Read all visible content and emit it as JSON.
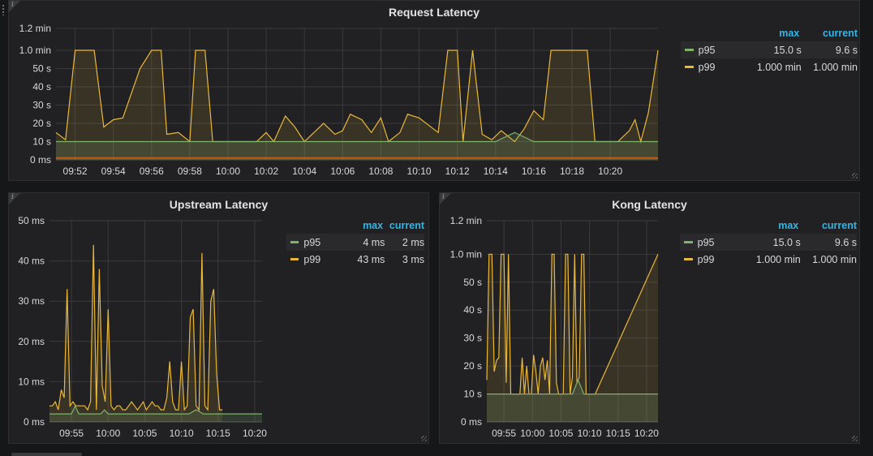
{
  "colors": {
    "p95": "#7eb26d",
    "p99": "#eab839",
    "max_header": "#33b5e5",
    "threshold": "#c15c17"
  },
  "legend_headers": {
    "max": "max",
    "current": "current"
  },
  "panels": [
    {
      "id": "request",
      "title": "Request Latency",
      "legend": [
        {
          "name": "p95",
          "max": "15.0 s",
          "current": "9.6 s"
        },
        {
          "name": "p99",
          "max": "1.000 min",
          "current": "1.000 min"
        }
      ]
    },
    {
      "id": "upstream",
      "title": "Upstream Latency",
      "legend": [
        {
          "name": "p95",
          "max": "4 ms",
          "current": "2 ms"
        },
        {
          "name": "p99",
          "max": "43 ms",
          "current": "3 ms"
        }
      ]
    },
    {
      "id": "kong",
      "title": "Kong Latency",
      "legend": [
        {
          "name": "p95",
          "max": "15.0 s",
          "current": "9.6 s"
        },
        {
          "name": "p99",
          "max": "1.000 min",
          "current": "1.000 min"
        }
      ]
    }
  ],
  "chart_data": [
    {
      "type": "line",
      "title": "Request Latency",
      "unit": "s",
      "ylim": [
        0,
        72
      ],
      "yticks": [
        0,
        10,
        20,
        30,
        40,
        50,
        60,
        72
      ],
      "ytick_labels": [
        "0 ms",
        "10 s",
        "20 s",
        "30 s",
        "40 s",
        "50 s",
        "1.0 min",
        "1.2 min"
      ],
      "x_start_min": 591,
      "x_end_min": 622.5,
      "xticks": [
        592,
        594,
        596,
        598,
        600,
        602,
        604,
        606,
        608,
        610,
        612,
        614,
        616,
        618,
        620
      ],
      "xtick_labels": [
        "09:52",
        "09:54",
        "09:56",
        "09:58",
        "10:00",
        "10:02",
        "10:04",
        "10:06",
        "10:08",
        "10:10",
        "10:12",
        "10:14",
        "10:16",
        "10:18",
        "10:20"
      ],
      "threshold": 1,
      "series": [
        {
          "name": "p99",
          "values": [
            15,
            11,
            60,
            60,
            18,
            22,
            23,
            50,
            60,
            60,
            14,
            15,
            10,
            60,
            60,
            10,
            10,
            10,
            10,
            10,
            15,
            10,
            24,
            18,
            10,
            15,
            20,
            14,
            16,
            25,
            22,
            15,
            23,
            10,
            15,
            25,
            23,
            19,
            15,
            60,
            60,
            10,
            60,
            14,
            11,
            16,
            10,
            17,
            27,
            22,
            60,
            60,
            60,
            60,
            10,
            10,
            10,
            16,
            22,
            10,
            26,
            60
          ],
          "x": [
            591,
            591.5,
            592,
            593,
            593.5,
            594,
            594.5,
            595.4,
            596,
            596.5,
            596.8,
            597.4,
            598,
            598.3,
            598.8,
            599.2,
            600,
            600.5,
            601,
            601.5,
            602,
            602.4,
            603,
            603.5,
            604,
            604.5,
            605,
            605.6,
            606,
            606.4,
            607,
            607.5,
            608,
            608.4,
            609,
            609.4,
            610,
            610.5,
            611,
            611.5,
            612,
            612.3,
            612.8,
            613.3,
            613.8,
            614.3,
            615,
            615.5,
            616,
            616.5,
            616.9,
            617,
            618,
            618.8,
            619.2,
            620,
            620.4,
            621,
            621.3,
            621.6,
            622,
            622.5
          ]
        },
        {
          "name": "p95",
          "values": [
            10,
            10,
            10,
            10,
            10,
            10,
            10,
            10,
            10,
            10,
            10,
            10,
            10,
            10,
            10,
            10,
            10,
            10,
            10,
            10,
            10,
            10,
            10,
            10,
            15,
            10,
            10,
            10,
            10,
            10,
            10,
            10,
            10
          ],
          "x": [
            591,
            592,
            593,
            594,
            595,
            596,
            597,
            598,
            599,
            600,
            601,
            602,
            603,
            604,
            605,
            606,
            607,
            608,
            609,
            610,
            611,
            612,
            613,
            614,
            615,
            616,
            617,
            618,
            619,
            620,
            621,
            622,
            622.5
          ]
        }
      ]
    },
    {
      "type": "line",
      "title": "Upstream Latency",
      "unit": "ms",
      "ylim": [
        0,
        50
      ],
      "yticks": [
        0,
        10,
        20,
        30,
        40,
        50
      ],
      "ytick_labels": [
        "0 ms",
        "10 ms",
        "20 ms",
        "30 ms",
        "40 ms",
        "50 ms"
      ],
      "x_start_min": 592,
      "x_end_min": 621,
      "xticks": [
        595,
        600,
        605,
        610,
        615,
        620
      ],
      "xtick_labels": [
        "09:55",
        "10:00",
        "10:05",
        "10:10",
        "10:15",
        "10:20"
      ],
      "series": [
        {
          "name": "p99",
          "values": [
            4,
            4,
            5,
            3,
            8,
            6,
            33,
            4,
            5,
            4,
            4,
            4,
            4,
            3,
            5,
            44,
            3,
            38,
            9,
            5,
            28,
            4,
            3,
            4,
            4,
            3,
            3,
            4,
            5,
            4,
            3,
            4,
            5,
            3,
            4,
            5,
            4,
            4,
            3,
            3,
            6,
            15,
            5,
            3,
            3,
            15,
            3,
            4,
            26,
            28,
            4,
            3,
            42,
            4,
            3,
            30,
            33,
            12,
            3,
            3
          ],
          "x": [
            592,
            592.4,
            592.8,
            593.2,
            593.6,
            594,
            594.4,
            594.8,
            595.2,
            595.6,
            596,
            596.4,
            596.8,
            597.2,
            597.6,
            598,
            598.4,
            598.8,
            599.2,
            599.6,
            600,
            600.4,
            600.8,
            601.2,
            601.6,
            602,
            602.4,
            602.8,
            603.2,
            603.6,
            604,
            604.4,
            604.8,
            605.2,
            605.6,
            606,
            606.4,
            606.8,
            607.2,
            607.6,
            608,
            608.4,
            608.8,
            609.2,
            609.6,
            610,
            610.4,
            610.8,
            611.2,
            611.6,
            612,
            612.4,
            612.8,
            613.2,
            613.6,
            614,
            614.4,
            614.8,
            615.2,
            615.6
          ]
        },
        {
          "name": "p95",
          "values": [
            2,
            2,
            2,
            2,
            4,
            2,
            2,
            2,
            2,
            3,
            2,
            2,
            2,
            2,
            2,
            2,
            2,
            2,
            2,
            2,
            2,
            2,
            3,
            2,
            2,
            2,
            2,
            2,
            2,
            2
          ],
          "x": [
            592,
            593,
            594,
            595,
            595.5,
            596,
            597,
            598,
            599,
            599.5,
            600,
            601,
            602,
            603,
            604,
            605,
            606,
            607,
            608,
            609,
            610,
            611,
            612,
            613,
            614,
            615,
            616,
            617,
            618,
            621
          ]
        }
      ]
    },
    {
      "type": "line",
      "title": "Kong Latency",
      "unit": "s",
      "ylim": [
        0,
        72
      ],
      "yticks": [
        0,
        10,
        20,
        30,
        40,
        50,
        60,
        72
      ],
      "ytick_labels": [
        "0 ms",
        "10 s",
        "20 s",
        "30 s",
        "40 s",
        "50 s",
        "1.0 min",
        "1.2 min"
      ],
      "x_start_min": 592,
      "x_end_min": 622,
      "xticks": [
        595,
        600,
        605,
        610,
        615,
        620
      ],
      "xtick_labels": [
        "09:55",
        "10:00",
        "10:05",
        "10:10",
        "10:15",
        "10:20"
      ],
      "series": [
        {
          "name": "p99",
          "values": [
            15,
            60,
            60,
            18,
            22,
            23,
            60,
            60,
            14,
            60,
            10,
            10,
            10,
            10,
            10,
            23,
            10,
            20,
            10,
            10,
            24,
            18,
            10,
            20,
            23,
            15,
            22,
            10,
            60,
            60,
            14,
            10,
            10,
            10,
            60,
            60,
            10,
            16,
            60,
            14,
            16,
            60,
            60,
            10,
            10,
            10,
            60
          ],
          "x": [
            592,
            592.4,
            592.9,
            593.3,
            593.7,
            594.1,
            594.5,
            595,
            595.4,
            595.8,
            596.2,
            596.6,
            597,
            597.4,
            597.8,
            598.2,
            598.6,
            599,
            599.4,
            599.8,
            600.2,
            600.6,
            601,
            601.4,
            601.8,
            602.2,
            602.6,
            603,
            603.4,
            603.8,
            604.2,
            604.6,
            605,
            605.4,
            605.8,
            606.2,
            606.6,
            607,
            607.4,
            607.8,
            608.2,
            608.6,
            609,
            609.4,
            610,
            611,
            622
          ]
        },
        {
          "name": "p95",
          "values": [
            10,
            10,
            10,
            10,
            10,
            10,
            10,
            10,
            10,
            10,
            10,
            10,
            10,
            10,
            10,
            10,
            15,
            10,
            10,
            10,
            10,
            10,
            10,
            10,
            10,
            10,
            10,
            10,
            10,
            10,
            10
          ],
          "x": [
            592,
            593,
            594,
            595,
            596,
            597,
            598,
            599,
            600,
            601,
            602,
            603,
            604,
            605,
            606,
            607,
            608,
            609,
            610,
            611,
            612,
            613,
            614,
            615,
            616,
            617,
            618,
            619,
            620,
            621,
            622
          ]
        }
      ]
    }
  ]
}
